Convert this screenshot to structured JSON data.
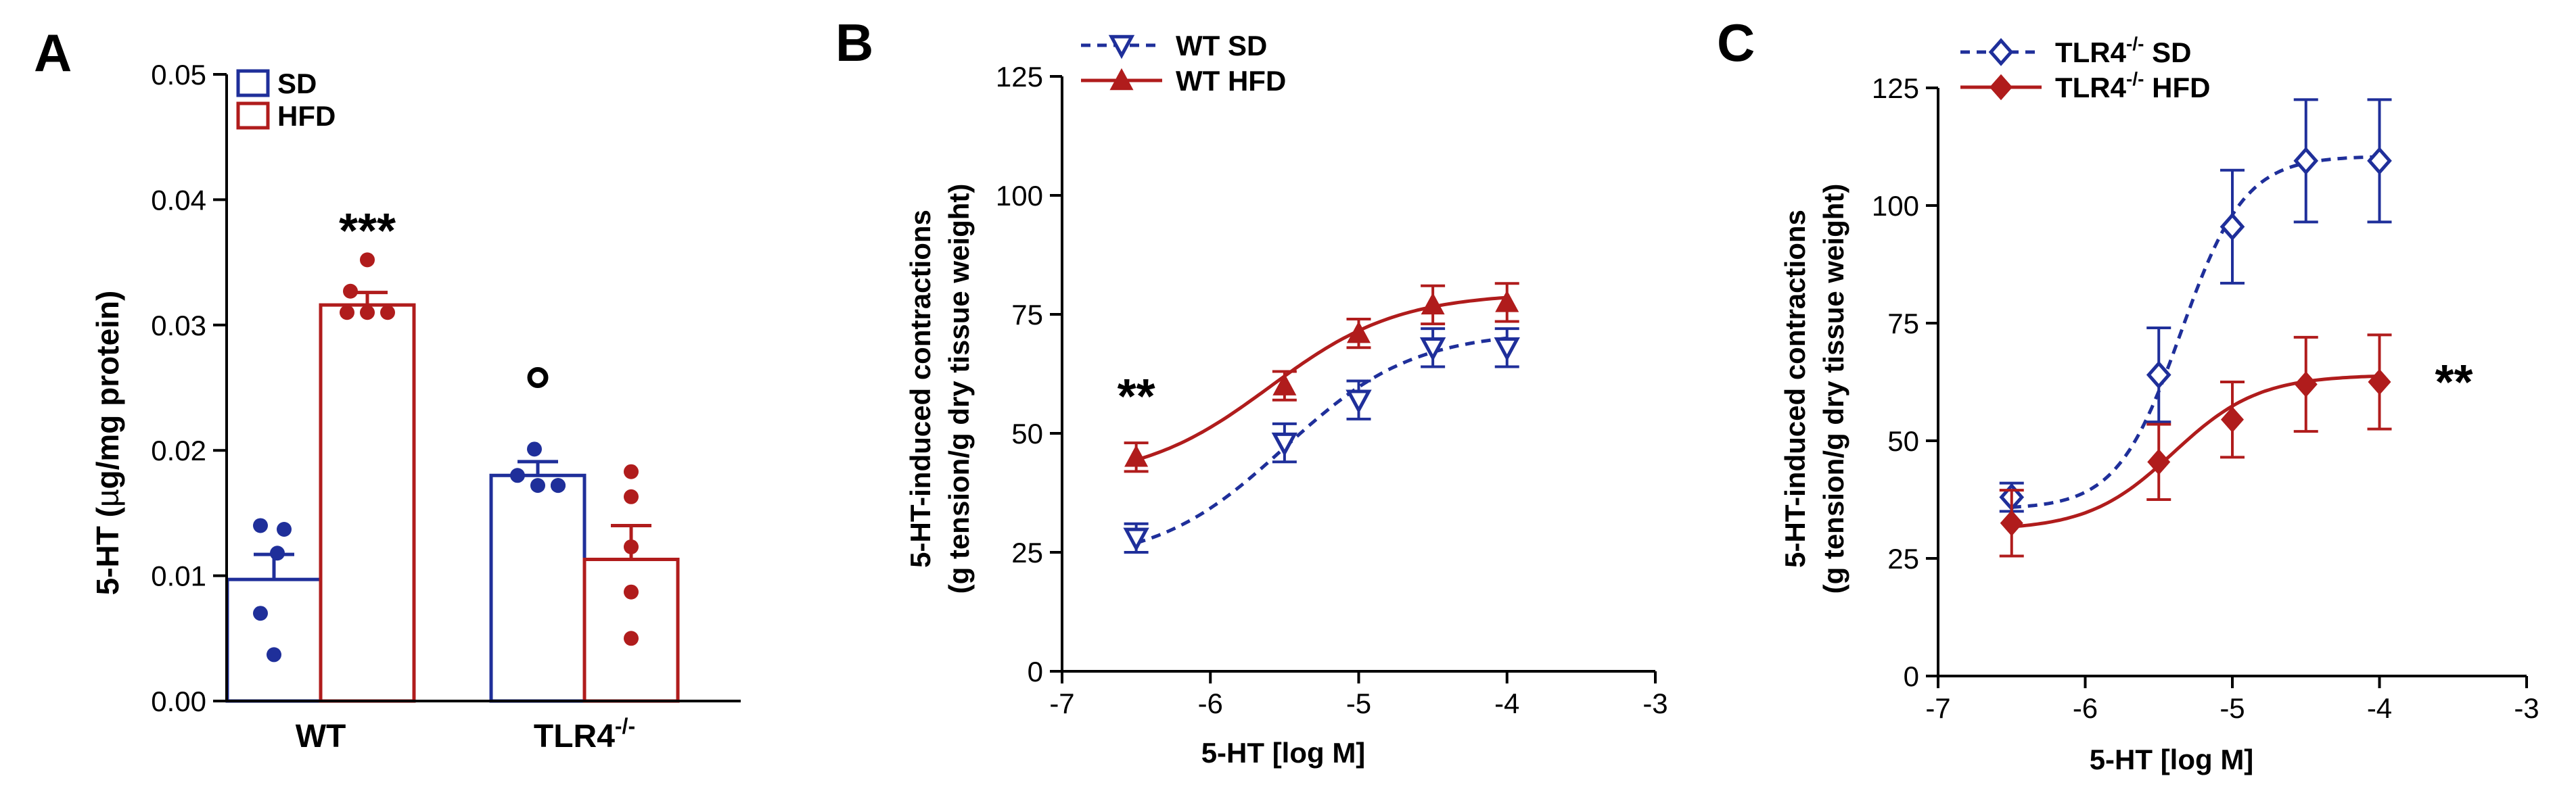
{
  "colors": {
    "sd": "#1f2f9a",
    "hfd": "#b01c1c",
    "axis": "#000000"
  },
  "chart_data": [
    {
      "panel": "A",
      "type": "bar",
      "ylabel_pre": "5-HT (",
      "ylabel_mu": "µ",
      "ylabel_post": "g/mg protein)",
      "ylim": [
        0,
        0.05
      ],
      "yticks": [
        "0.00",
        "0.01",
        "0.02",
        "0.03",
        "0.04",
        "0.05"
      ],
      "yticks_num": [
        0,
        0.01,
        0.02,
        0.03,
        0.04,
        0.05
      ],
      "categories": [
        {
          "base": "WT",
          "sup": ""
        },
        {
          "base": "TLR4",
          "sup": "-/-"
        }
      ],
      "legend": [
        "SD",
        "HFD"
      ],
      "series": [
        {
          "name": "SD",
          "values": [
            0.0097,
            0.018
          ],
          "sem": [
            0.002,
            0.0011
          ],
          "points": [
            [
              0.014,
              0.0137,
              0.0118,
              0.007,
              0.0037
            ],
            [
              0.0201,
              0.018,
              0.0172,
              0.0172,
              0.0172
            ]
          ]
        },
        {
          "name": "HFD",
          "values": [
            0.0316,
            0.0113
          ],
          "sem": [
            0.001,
            0.0027
          ],
          "points": [
            [
              0.0352,
              0.0327,
              0.031,
              0.031,
              0.031
            ],
            [
              0.0183,
              0.0163,
              0.0123,
              0.0087,
              0.005
            ]
          ]
        }
      ],
      "annotations": [
        {
          "text": "***",
          "series": "HFD",
          "category": 0,
          "y": 0.0378
        },
        {
          "text": "o",
          "series": "SD",
          "category": 1,
          "y": 0.025
        }
      ]
    },
    {
      "panel": "B",
      "type": "line",
      "ylabel_line1": "5-HT-induced contractions",
      "ylabel_line2": "(g tension/g dry tissue weight)",
      "xlabel": "5-HT [log M]",
      "xlim": [
        -7,
        -3
      ],
      "ylim": [
        0,
        125
      ],
      "xticks": [
        "-7",
        "-6",
        "-5",
        "-4",
        "-3"
      ],
      "xticks_num": [
        -7,
        -6,
        -5,
        -4,
        -3
      ],
      "yticks": [
        "0",
        "25",
        "50",
        "75",
        "100",
        "125"
      ],
      "yticks_num": [
        0,
        25,
        50,
        75,
        100,
        125
      ],
      "x": [
        -6.5,
        -5.5,
        -5.0,
        -4.5,
        -4.0
      ],
      "series": [
        {
          "name": "WT SD",
          "legend_base": "WT SD",
          "legend_sup": "",
          "legend_post": "",
          "marker": "triangle-down-open",
          "dash": true,
          "values": [
            28,
            48,
            57,
            68,
            68
          ],
          "sem": [
            3,
            4,
            4,
            4,
            4
          ]
        },
        {
          "name": "WT HFD",
          "legend_base": "WT HFD",
          "legend_sup": "",
          "legend_post": "",
          "marker": "triangle-up-filled",
          "dash": false,
          "values": [
            45,
            60,
            71,
            77,
            77.5
          ],
          "sem": [
            3,
            3,
            3,
            4,
            4
          ]
        }
      ],
      "curves": [
        {
          "series": "WT SD",
          "bottom": 22.5,
          "top": 71.5,
          "logec50": -5.5,
          "hill": 1.0
        },
        {
          "series": "WT HFD",
          "bottom": 40,
          "top": 79.5,
          "logec50": -5.6,
          "hill": 1.0
        }
      ],
      "annotation": {
        "text": "**",
        "x": -6.5,
        "y": 50
      }
    },
    {
      "panel": "C",
      "type": "line",
      "ylabel_line1": "5-HT-induced contractions",
      "ylabel_line2": "(g tension/g dry tissue weight)",
      "xlabel": "5-HT [log M]",
      "xlim": [
        -7,
        -3
      ],
      "ylim": [
        0,
        125
      ],
      "xticks": [
        "-7",
        "-6",
        "-5",
        "-4",
        "-3"
      ],
      "xticks_num": [
        -7,
        -6,
        -5,
        -4,
        -3
      ],
      "yticks": [
        "0",
        "25",
        "50",
        "75",
        "100",
        "125"
      ],
      "yticks_num": [
        0,
        25,
        50,
        75,
        100,
        125
      ],
      "x": [
        -6.5,
        -5.5,
        -5.0,
        -4.5,
        -4.0
      ],
      "series": [
        {
          "name": "TLR4-/- SD",
          "legend_base": "TLR4",
          "legend_sup": "-/-",
          "legend_post": " SD",
          "marker": "diamond-open",
          "dash": true,
          "values": [
            38,
            64,
            95.5,
            109.5,
            109.5
          ],
          "sem": [
            3,
            10,
            12,
            13,
            13
          ]
        },
        {
          "name": "TLR4-/- HFD",
          "legend_base": "TLR4",
          "legend_sup": "-/-",
          "legend_post": " HFD",
          "marker": "diamond-filled",
          "dash": false,
          "values": [
            32.5,
            45.5,
            54.5,
            62,
            62.5
          ],
          "sem": [
            7,
            8,
            8,
            10,
            10
          ]
        }
      ],
      "curves": [
        {
          "series": "TLR4-/- SD",
          "bottom": 35.5,
          "top": 110.5,
          "logec50": -5.35,
          "hill": 2.0
        },
        {
          "series": "TLR4-/- HFD",
          "bottom": 31,
          "top": 64,
          "logec50": -5.4,
          "hill": 1.5
        }
      ],
      "annotation": {
        "text": "**",
        "x": -4.0,
        "y": 62.5
      }
    }
  ],
  "panel_labels": [
    "A",
    "B",
    "C"
  ]
}
